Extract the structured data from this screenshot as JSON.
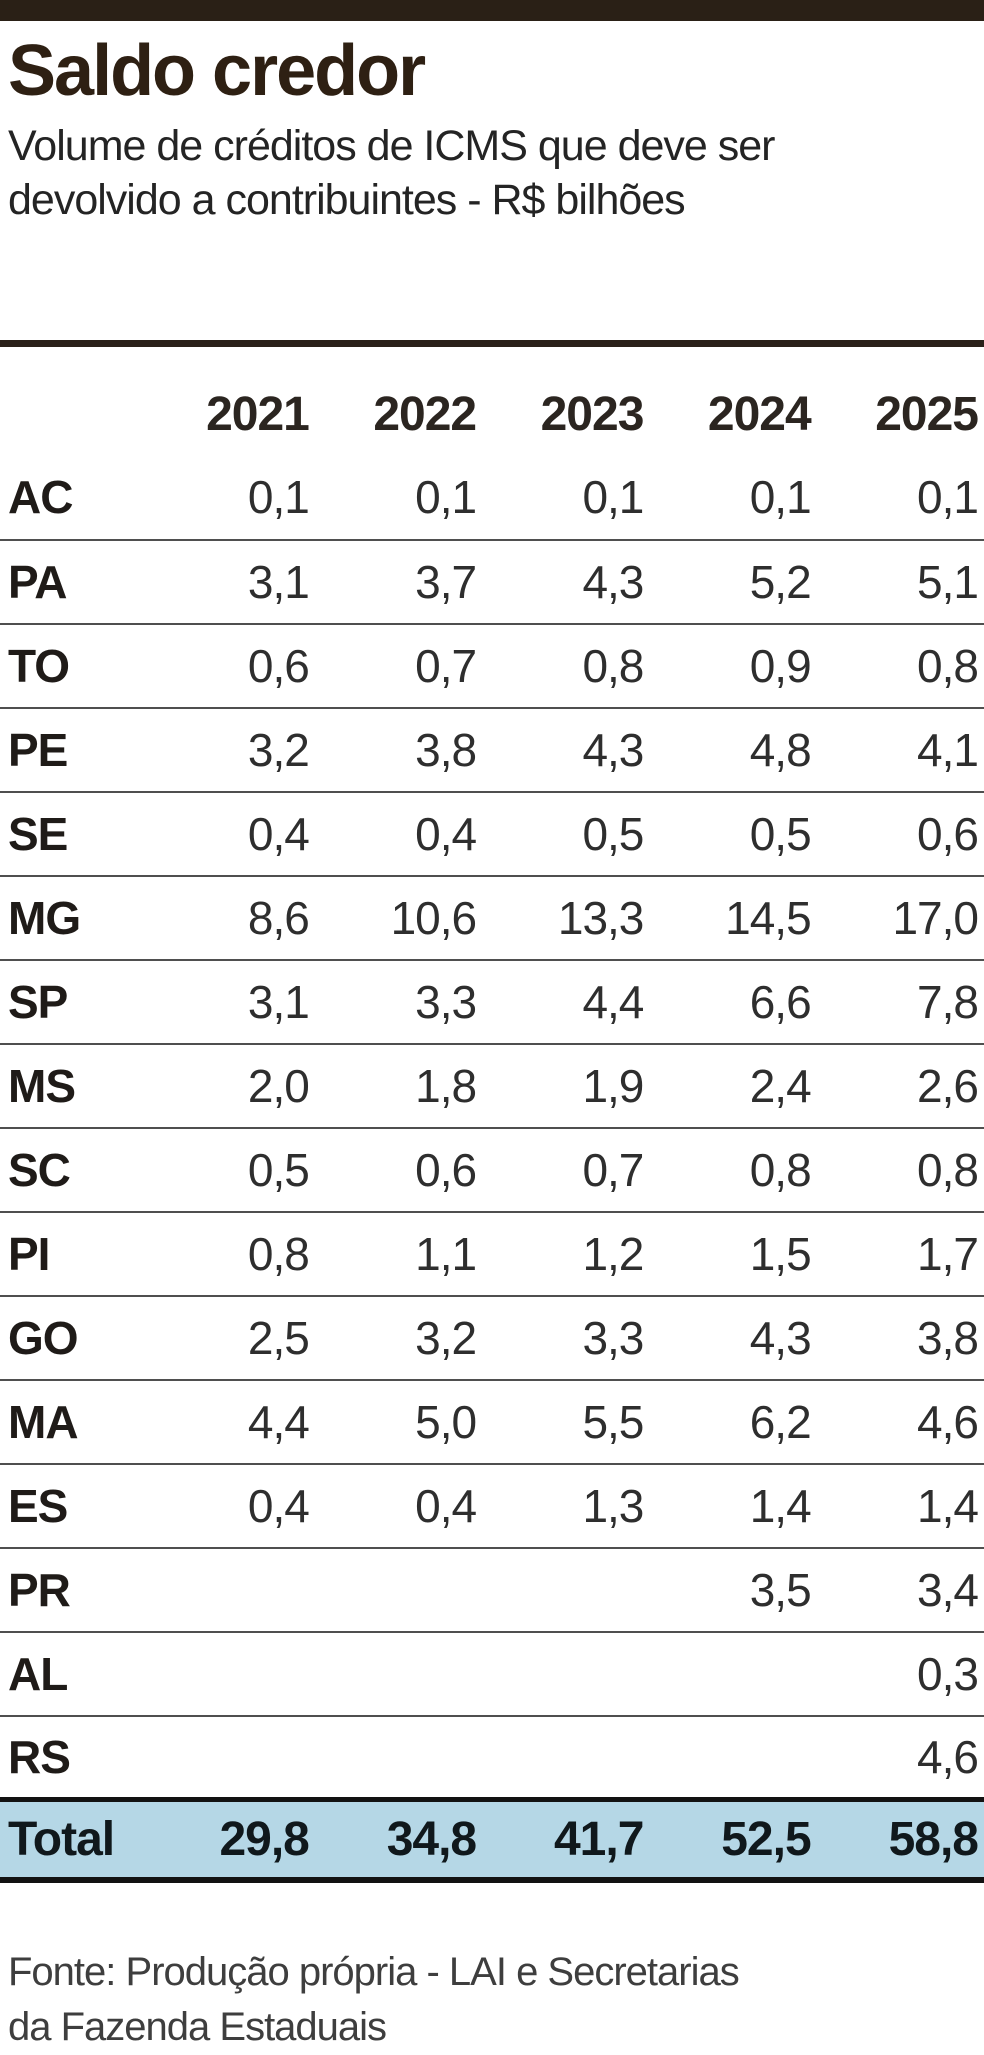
{
  "header": {
    "title": "Saldo credor",
    "subtitle_line1": "Volume de créditos de ICMS que deve ser",
    "subtitle_line2": "devolvido a contribuintes - R$ bilhões"
  },
  "chart_data": {
    "type": "table",
    "title": "Saldo credor",
    "subtitle": "Volume de créditos de ICMS que deve ser devolvido a contribuintes - R$ bilhões",
    "unit": "R$ bilhões",
    "columns": [
      "2021",
      "2022",
      "2023",
      "2024",
      "2025"
    ],
    "rows": [
      {
        "label": "AC",
        "values": [
          "0,1",
          "0,1",
          "0,1",
          "0,1",
          "0,1"
        ]
      },
      {
        "label": "PA",
        "values": [
          "3,1",
          "3,7",
          "4,3",
          "5,2",
          "5,1"
        ]
      },
      {
        "label": "TO",
        "values": [
          "0,6",
          "0,7",
          "0,8",
          "0,9",
          "0,8"
        ]
      },
      {
        "label": "PE",
        "values": [
          "3,2",
          "3,8",
          "4,3",
          "4,8",
          "4,1"
        ]
      },
      {
        "label": "SE",
        "values": [
          "0,4",
          "0,4",
          "0,5",
          "0,5",
          "0,6"
        ]
      },
      {
        "label": "MG",
        "values": [
          "8,6",
          "10,6",
          "13,3",
          "14,5",
          "17,0"
        ]
      },
      {
        "label": "SP",
        "values": [
          "3,1",
          "3,3",
          "4,4",
          "6,6",
          "7,8"
        ]
      },
      {
        "label": "MS",
        "values": [
          "2,0",
          "1,8",
          "1,9",
          "2,4",
          "2,6"
        ]
      },
      {
        "label": "SC",
        "values": [
          "0,5",
          "0,6",
          "0,7",
          "0,8",
          "0,8"
        ]
      },
      {
        "label": "PI",
        "values": [
          "0,8",
          "1,1",
          "1,2",
          "1,5",
          "1,7"
        ]
      },
      {
        "label": "GO",
        "values": [
          "2,5",
          "3,2",
          "3,3",
          "4,3",
          "3,8"
        ]
      },
      {
        "label": "MA",
        "values": [
          "4,4",
          "5,0",
          "5,5",
          "6,2",
          "4,6"
        ]
      },
      {
        "label": "ES",
        "values": [
          "0,4",
          "0,4",
          "1,3",
          "1,4",
          "1,4"
        ]
      },
      {
        "label": "PR",
        "values": [
          null,
          null,
          null,
          "3,5",
          "3,4"
        ]
      },
      {
        "label": "AL",
        "values": [
          null,
          null,
          null,
          null,
          "0,3"
        ]
      },
      {
        "label": "RS",
        "values": [
          null,
          null,
          null,
          null,
          "4,6"
        ]
      }
    ],
    "total": {
      "label": "Total",
      "values": [
        "29,8",
        "34,8",
        "41,7",
        "52,5",
        "58,8"
      ]
    }
  },
  "source": {
    "line1": "Fonte: Produção própria - LAI e Secretarias",
    "line2": "da Fazenda Estaduais"
  },
  "colors": {
    "topbar": "#2a2016",
    "title_text": "#2e2013",
    "rule": "#2a211a",
    "row_separator": "#4f4f4f",
    "total_background": "#b5d7e6",
    "total_frame": "#121212",
    "body_text": "#2e2e2e",
    "source_text": "#3e3e3e"
  }
}
